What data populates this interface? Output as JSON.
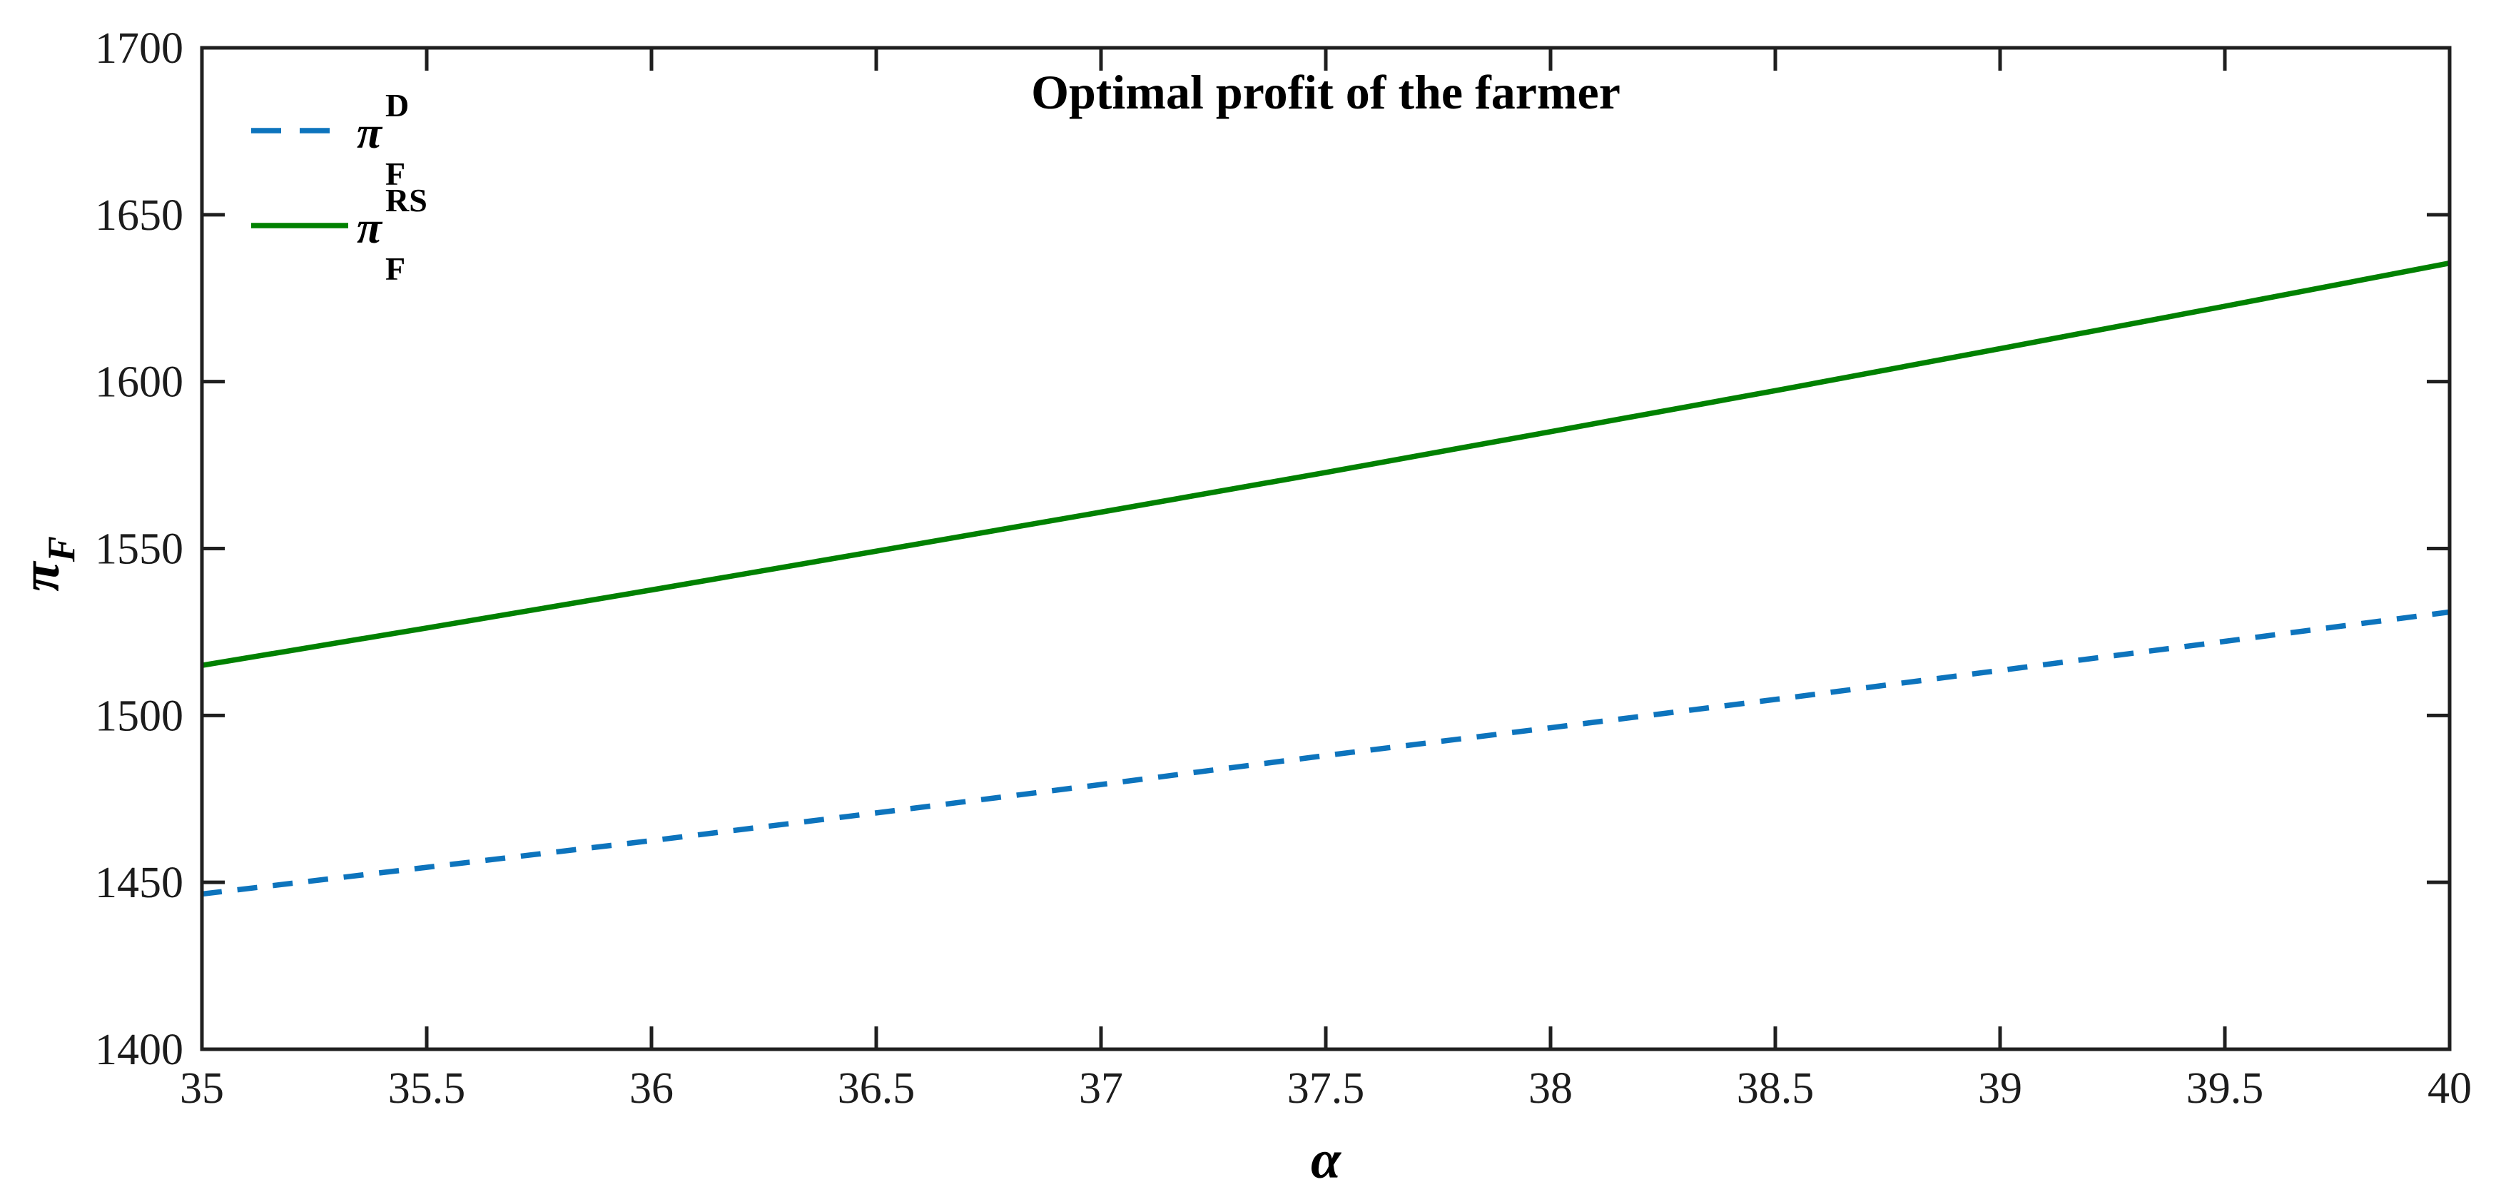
{
  "chart_data": {
    "type": "line",
    "title": "Optimal profit of the farmer",
    "xlabel": "α",
    "ylabel": {
      "base": "π",
      "sub": "F"
    },
    "xlim": [
      35,
      40
    ],
    "ylim": [
      1400,
      1700
    ],
    "x_ticks": [
      35,
      35.5,
      36,
      36.5,
      37,
      37.5,
      38,
      38.5,
      39,
      39.5,
      40
    ],
    "x_tick_labels": [
      "35",
      "35.5",
      "36",
      "36.5",
      "37",
      "37.5",
      "38",
      "38.5",
      "39",
      "39.5",
      "40"
    ],
    "y_ticks": [
      1400,
      1450,
      1500,
      1550,
      1600,
      1650,
      1700
    ],
    "y_tick_labels": [
      "1400",
      "1450",
      "1500",
      "1550",
      "1600",
      "1650",
      "1700"
    ],
    "grid": false,
    "box": true,
    "legend_position": "top-left-inside",
    "x": [
      35,
      35.5,
      36,
      36.5,
      37,
      37.5,
      38,
      38.5,
      39,
      39.5,
      40
    ],
    "series": [
      {
        "name": "pi-F-D",
        "label": {
          "base": "π",
          "sup": "D",
          "sub": "F"
        },
        "style": "dashed",
        "color": "#0d74bd",
        "values": [
          1446.5,
          1454.5,
          1462.5,
          1470.8,
          1479.3,
          1488.0,
          1496.3,
          1504.8,
          1513.5,
          1522.2,
          1531.0
        ]
      },
      {
        "name": "pi-F-RS",
        "label": {
          "base": "π",
          "sup": "RS",
          "sub": "F"
        },
        "style": "solid",
        "color": "#018101",
        "values": [
          1515.0,
          1526.2,
          1537.6,
          1549.2,
          1560.9,
          1572.8,
          1585.0,
          1597.3,
          1609.9,
          1622.6,
          1635.5
        ]
      }
    ],
    "colors": {
      "axis": "#1f1f1f",
      "background": "#ffffff"
    }
  }
}
